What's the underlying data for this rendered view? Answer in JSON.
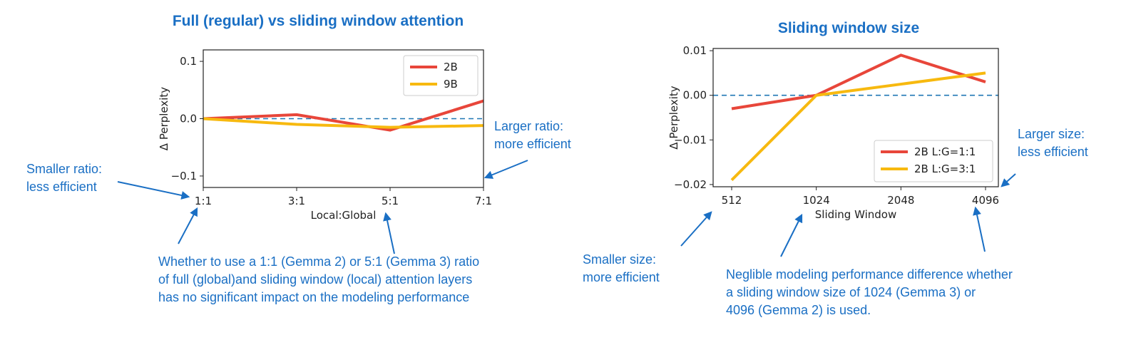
{
  "colors": {
    "series_red": "#e8463a",
    "series_yellow": "#f7b90f",
    "annotation": "#1a6fc4",
    "baseline": "#1f77b4"
  },
  "chart_data": [
    {
      "type": "line",
      "title": "Full (regular) vs sliding window attention",
      "xlabel": "Local:Global",
      "ylabel": "Δ Perplexity",
      "categories": [
        "1:1",
        "3:1",
        "5:1",
        "7:1"
      ],
      "yticks": [
        "0.1",
        "0.0",
        "−0.1"
      ],
      "ytick_values": [
        0.1,
        0.0,
        -0.1
      ],
      "ylim": [
        -0.12,
        0.12
      ],
      "baseline": 0,
      "legend": "top-right",
      "grid": false,
      "series": [
        {
          "name": "2B",
          "color": "#e8463a",
          "values": [
            0.0,
            0.007,
            -0.02,
            0.031
          ]
        },
        {
          "name": "9B",
          "color": "#f7b90f",
          "values": [
            0.0,
            -0.01,
            -0.015,
            -0.012
          ]
        }
      ]
    },
    {
      "type": "line",
      "title": "Sliding window size",
      "xlabel": "Sliding Window",
      "ylabel": "Δ Perplexity",
      "categories": [
        "512",
        "1024",
        "2048",
        "4096"
      ],
      "yticks": [
        "0.01",
        "0.00",
        "−0.01",
        "−0.02"
      ],
      "ytick_values": [
        0.01,
        0.0,
        -0.01,
        -0.02
      ],
      "ylim": [
        -0.0205,
        0.0105
      ],
      "baseline": 0,
      "legend": "bottom-right",
      "grid": false,
      "series": [
        {
          "name": "2B L:G=1:1",
          "color": "#e8463a",
          "values": [
            -0.003,
            0.0,
            0.009,
            0.003
          ]
        },
        {
          "name": "2B L:G=3:1",
          "color": "#f7b90f",
          "values": [
            -0.019,
            0.0,
            0.0025,
            0.005
          ]
        }
      ]
    }
  ],
  "annotations": {
    "smaller_ratio": [
      "Smaller ratio:",
      "less efficient"
    ],
    "larger_ratio": [
      "Larger ratio:",
      "more efficient"
    ],
    "ratio_note": [
      "Whether to use a 1:1 (Gemma 2) or 5:1 (Gemma 3) ratio",
      "of full (global)and sliding window (local) attention layers",
      "has no significant  impact on the modeling performance"
    ],
    "smaller_size": [
      "Smaller size:",
      "more efficient"
    ],
    "larger_size": [
      "Larger size:",
      "less efficient"
    ],
    "size_note": [
      "Neglible modeling performance difference whether",
      "a sliding window size of 1024 (Gemma 3) or",
      "4096 (Gemma 2) is used."
    ]
  }
}
